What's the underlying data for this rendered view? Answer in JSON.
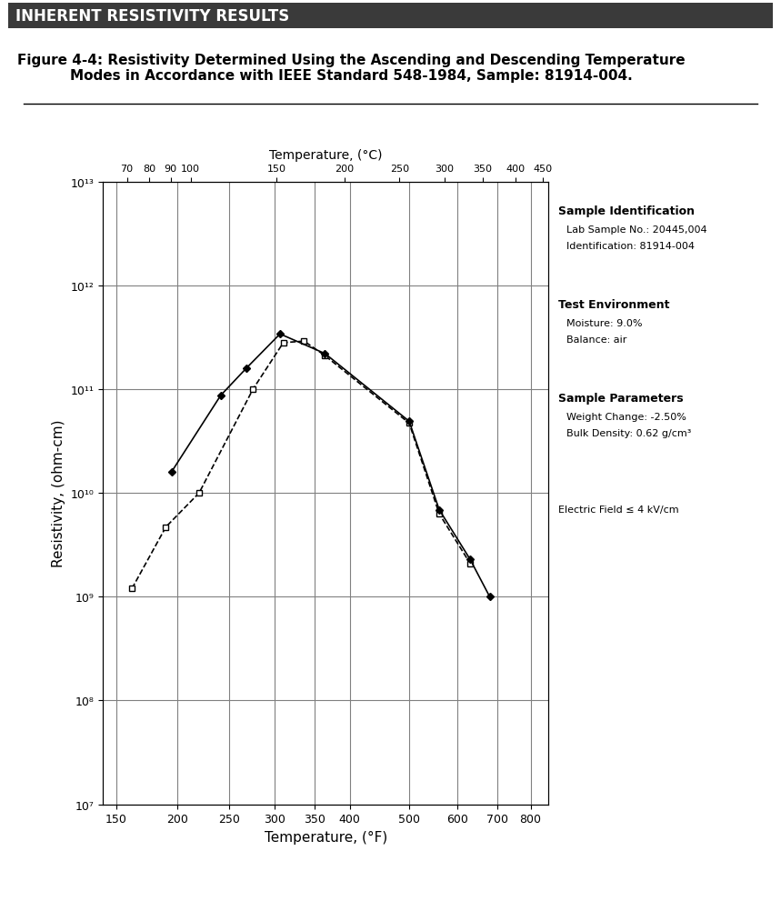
{
  "page": {
    "header": "INHERENT RESISTIVITY RESULTS",
    "title": "Figure 4-4: Resistivity Determined Using the Ascending and Descending Temperature Modes in Accordance with IEEE Standard 548-1984, Sample: 81914-004.",
    "side_panel": [
      {
        "heading": "Sample Identification",
        "lines": [
          "Lab Sample No.: 20445,004",
          "Identification: 81914-004"
        ]
      },
      {
        "heading": "Test Environment",
        "lines": [
          "Moisture: 9.0%",
          "Balance: air"
        ]
      },
      {
        "heading": "Sample Parameters",
        "lines": [
          "Weight Change: -2.50%",
          "Bulk Density: 0.62 g/cm³"
        ]
      }
    ],
    "note": "Electric Field ≤ 4 kV/cm"
  },
  "chart_data": {
    "type": "line",
    "xlabel": "Temperature, (°F)",
    "x2label": "Temperature, (°C)",
    "ylabel": "Resistivity, (ohm-cm)",
    "xlim": [
      140,
      860
    ],
    "xticks": [
      150,
      200,
      250,
      300,
      350,
      400,
      500,
      600,
      700,
      800
    ],
    "x2lim": [
      60,
      460
    ],
    "x2ticks": [
      70,
      80,
      90,
      100,
      150,
      200,
      250,
      300,
      350,
      400,
      450
    ],
    "ylim": [
      10000000,
      10000000000000
    ],
    "yticks": [
      {
        "value": 10000000,
        "label": "10⁷"
      },
      {
        "value": 100000000,
        "label": "10⁸"
      },
      {
        "value": 1000000000,
        "label": "10⁹"
      },
      {
        "value": 10000000000,
        "label": "10¹⁰"
      },
      {
        "value": 100000000000,
        "label": "10¹¹"
      },
      {
        "value": 1000000000000,
        "label": "10¹²"
      },
      {
        "value": 10000000000000,
        "label": "10¹³"
      }
    ],
    "log": "y",
    "grid": true,
    "series": [
      {
        "color": "#000000",
        "line_style": "dashed",
        "marker": "square",
        "x": [
          162,
          190,
          220,
          275,
          310,
          336,
          364,
          500,
          560,
          630
        ],
        "values": [
          1200000000,
          4700000000,
          10000000000,
          100000000000,
          280000000000,
          290000000000,
          210000000000,
          47000000000,
          6300000000,
          2100000000
        ]
      },
      {
        "color": "#000000",
        "line_style": "solid",
        "marker": "diamond",
        "x": [
          195,
          241,
          268,
          306,
          364,
          500,
          560,
          630,
          680
        ],
        "values": [
          16000000000,
          87000000000,
          160000000000,
          340000000000,
          220000000000,
          49000000000,
          6900000000,
          2300000000,
          1000000000
        ]
      }
    ]
  }
}
